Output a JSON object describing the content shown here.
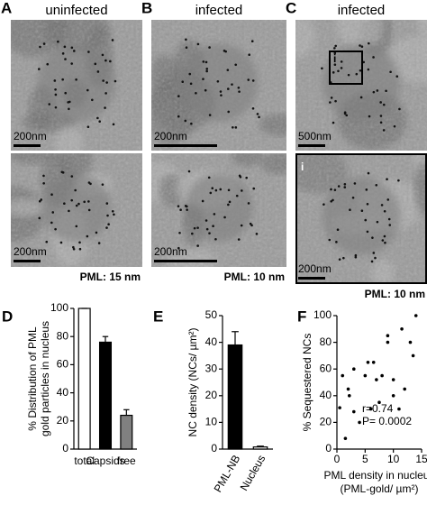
{
  "panels": [
    {
      "letter": "A",
      "title": "uninfected",
      "scale_top": "200nm",
      "scale_bottom": "200nm",
      "footer": "PML: 15 nm"
    },
    {
      "letter": "B",
      "title": "infected",
      "scale_top": "200nm",
      "scale_bottom": "200nm",
      "footer": "PML: 10 nm"
    },
    {
      "letter": "C",
      "title": "infected",
      "scale_top": "500nm",
      "scale_bottom": "200nm",
      "footer": "PML: 10 nm",
      "inset": "i",
      "inset_bottom": "i"
    }
  ],
  "chart_data": [
    {
      "type": "bar",
      "panel_letter": "D",
      "ylabel": [
        "% Distribution of PML",
        "gold particles in nucleus"
      ],
      "categories": [
        "total",
        "Capsids",
        "free"
      ],
      "values": [
        100,
        76,
        24
      ],
      "errors": [
        0,
        4,
        4
      ],
      "colors": [
        "#ffffff",
        "#000000",
        "#808080"
      ],
      "ylim": [
        0,
        100
      ],
      "yticks": [
        0,
        20,
        40,
        60,
        80,
        100
      ]
    },
    {
      "type": "bar",
      "panel_letter": "E",
      "ylabel": [
        "NC density (NCs/ µm²)"
      ],
      "categories": [
        "PML-NB",
        "Nucleus"
      ],
      "values": [
        39,
        0.8
      ],
      "errors": [
        5,
        0.3
      ],
      "colors": [
        "#000000",
        "#ffffff"
      ],
      "ylim": [
        0,
        50
      ],
      "yticks": [
        0,
        10,
        20,
        30,
        40,
        50
      ]
    },
    {
      "type": "scatter",
      "panel_letter": "F",
      "ylabel": [
        "% Sequestered NCs"
      ],
      "xlabel": [
        "PML density in nucleus",
        "(PML-gold/ µm²)"
      ],
      "annotations": [
        "r=0.74",
        "P= 0.0002"
      ],
      "color": "#000000",
      "x": [
        0.5,
        1,
        1.5,
        2,
        2.2,
        3,
        3,
        4,
        5,
        5.5,
        6,
        6.5,
        7,
        7.5,
        8,
        9,
        9,
        10,
        10,
        11,
        11.5,
        12,
        13,
        13.5,
        14
      ],
      "values": [
        31,
        55,
        8,
        45,
        40,
        60,
        28,
        20,
        55,
        65,
        30,
        65,
        52,
        35,
        55,
        85,
        80,
        40,
        52,
        30,
        90,
        45,
        80,
        70,
        100
      ],
      "xlim": [
        0,
        15
      ],
      "xticks": [
        0,
        5,
        10,
        15
      ],
      "ylim": [
        0,
        100
      ],
      "yticks": [
        0,
        20,
        40,
        60,
        80,
        100
      ]
    }
  ]
}
